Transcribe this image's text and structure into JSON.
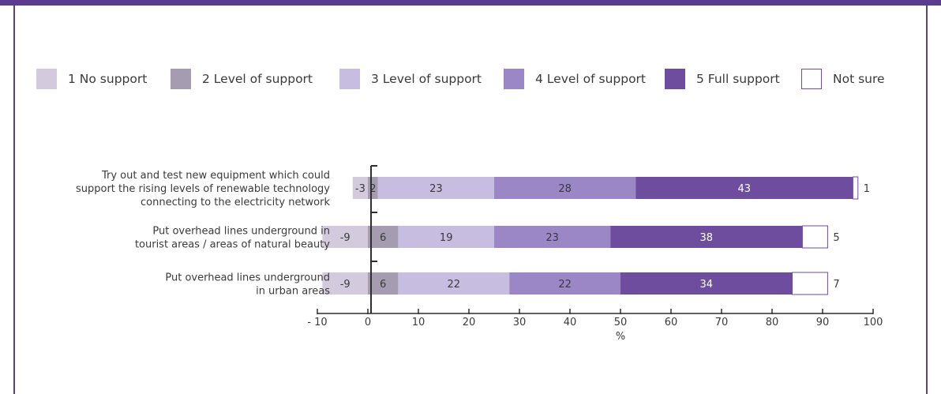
{
  "legend": [
    {
      "label": "1 No support",
      "color": "#d3cbdd"
    },
    {
      "label": "2 Level of support",
      "color": "#a59cb2"
    },
    {
      "label": "3 Level of support",
      "color": "#c6bde0"
    },
    {
      "label": "4 Level of support",
      "color": "#9b86c6"
    },
    {
      "label": "5 Full support",
      "color": "#6e4d9e"
    },
    {
      "label": "Not sure",
      "color": "#ffffff"
    }
  ],
  "chart_data": {
    "type": "bar",
    "orientation": "horizontal",
    "stacked": true,
    "xlabel": "%",
    "xlim": [
      -10,
      100
    ],
    "xticks": [
      -10,
      0,
      10,
      20,
      30,
      40,
      50,
      60,
      70,
      80,
      90,
      100
    ],
    "xtick_labels": [
      "- 10",
      "0",
      "10",
      "20",
      "30",
      "40",
      "50",
      "60",
      "70",
      "80",
      "90",
      "100"
    ],
    "categories": [
      [
        "Try out and test new equipment which could",
        "support the rising levels of renewable technology",
        "connecting to the electricity network"
      ],
      [
        "Put overhead lines underground in",
        "tourist areas / areas of natural beauty"
      ],
      [
        "Put overhead lines underground",
        "in urban areas"
      ]
    ],
    "series": [
      {
        "name": "1 No support",
        "values": [
          -3,
          -9,
          -9
        ],
        "labels": [
          "-3",
          "-9",
          "-9"
        ]
      },
      {
        "name": "2 Level of support",
        "values": [
          2,
          6,
          6
        ],
        "labels": [
          "2",
          "6",
          "6"
        ]
      },
      {
        "name": "3 Level of support",
        "values": [
          23,
          19,
          22
        ],
        "labels": [
          "23",
          "19",
          "22"
        ]
      },
      {
        "name": "4 Level of support",
        "values": [
          28,
          23,
          22
        ],
        "labels": [
          "28",
          "23",
          "22"
        ]
      },
      {
        "name": "5 Full support",
        "values": [
          43,
          38,
          34
        ],
        "labels": [
          "43",
          "38",
          "34"
        ]
      },
      {
        "name": "Not sure",
        "values": [
          1,
          5,
          7
        ],
        "labels": [
          "1",
          "5",
          "7"
        ]
      }
    ]
  }
}
